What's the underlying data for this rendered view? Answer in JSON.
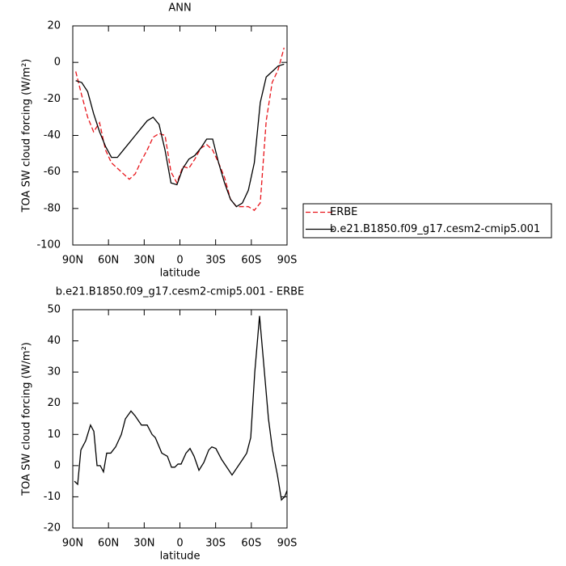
{
  "chart_data": [
    {
      "type": "line",
      "title": "ANN",
      "xlabel": "latitude",
      "ylabel": "TOA SW cloud forcing (W/m²)",
      "xlim": [
        90,
        -90
      ],
      "ylim": [
        -100,
        20
      ],
      "xticks": [
        {
          "value": 90,
          "label": "90N"
        },
        {
          "value": 60,
          "label": "60N"
        },
        {
          "value": 30,
          "label": "30N"
        },
        0,
        {
          "value": -30,
          "label": "30S"
        },
        {
          "value": -60,
          "label": "60S"
        },
        {
          "value": -90,
          "label": "90S"
        }
      ],
      "yticks": [
        -100,
        -80,
        -60,
        -40,
        -20,
        0,
        20
      ],
      "legend": "right",
      "x": [
        87.5,
        82.5,
        77.5,
        72.5,
        67.5,
        62.5,
        57.5,
        52.5,
        47.5,
        42.5,
        37.5,
        32.5,
        27.5,
        22.5,
        17.5,
        12.5,
        7.5,
        2.5,
        -2.5,
        -7.5,
        -12.5,
        -17.5,
        -22.5,
        -27.5,
        -32.5,
        -37.5,
        -42.5,
        -47.5,
        -52.5,
        -57.5,
        -62.5,
        -67.5,
        -72.5,
        -77.5,
        -82.5,
        -87.5
      ],
      "series": [
        {
          "name": "ERBE",
          "color": "#e8141a",
          "style": "dashed",
          "values": [
            -5,
            -18,
            -30,
            -38,
            -33,
            -48,
            -55,
            -58,
            -61,
            -64,
            -61,
            -54,
            -48,
            -41,
            -39,
            -40,
            -60,
            -66,
            -57,
            -58,
            -53,
            -47,
            -45,
            -48,
            -55,
            -63,
            -75,
            -79,
            -79,
            -79,
            -81,
            -77,
            -32,
            -11,
            -4,
            8
          ]
        },
        {
          "name": "b.e21.B1850.f09_g17.cesm2-cmip5.001",
          "color": "#000000",
          "style": "solid",
          "values": [
            -10,
            -11,
            -16,
            -28,
            -38,
            -46,
            -52,
            -52,
            -48,
            -44,
            -40,
            -36,
            -32,
            -30,
            -34,
            -48,
            -66,
            -67,
            -58,
            -53,
            -51,
            -47,
            -42,
            -42,
            -55,
            -66,
            -75,
            -79,
            -77,
            -70,
            -55,
            -22,
            -8,
            -5,
            -2,
            -1
          ]
        }
      ]
    },
    {
      "type": "line",
      "title": "b.e21.B1850.f09_g17.cesm2-cmip5.001 - ERBE",
      "xlabel": "latitude",
      "ylabel": "TOA SW cloud forcing (W/m²)",
      "xlim": [
        90,
        -90
      ],
      "ylim": [
        -20,
        50
      ],
      "xticks": [
        {
          "value": 90,
          "label": "90N"
        },
        {
          "value": 60,
          "label": "60N"
        },
        {
          "value": 30,
          "label": "30N"
        },
        0,
        {
          "value": -30,
          "label": "30S"
        },
        {
          "value": -60,
          "label": "60S"
        },
        {
          "value": -90,
          "label": "90S"
        }
      ],
      "yticks": [
        -20,
        -10,
        0,
        10,
        20,
        30,
        40,
        50
      ],
      "x": [
        88.6,
        85.9,
        83.2,
        79.1,
        75.1,
        72.3,
        69.6,
        66.9,
        64.2,
        61.5,
        58.1,
        54.0,
        49.2,
        45.8,
        41.1,
        37.7,
        32.3,
        27.5,
        23.4,
        20.7,
        15.2,
        10.5,
        7.1,
        4.3,
        1.6,
        -1.0,
        -5.1,
        -8.5,
        -11.9,
        -16.0,
        -20.1,
        -24.2,
        -26.8,
        -30.2,
        -35.0,
        -43.8,
        -52.7,
        -56.1,
        -59.5,
        -62.9,
        -66.9,
        -71.0,
        -74.4,
        -77.8,
        -81.9,
        -85.3,
        -88.0,
        -90.0
      ],
      "series": [
        {
          "name": null,
          "color": "#000000",
          "style": "solid",
          "values": [
            -5,
            -6,
            5,
            8,
            13,
            11,
            0,
            0,
            -2,
            4,
            4,
            6,
            10,
            15,
            17.5,
            16,
            13,
            13,
            10,
            9,
            4,
            3,
            -0.5,
            -0.5,
            0.5,
            0.5,
            4,
            5.5,
            3,
            -1.5,
            1,
            5,
            6,
            5.5,
            2,
            -3,
            2,
            4,
            9,
            30,
            48,
            30,
            15,
            5,
            -3,
            -11,
            -10,
            -8
          ]
        }
      ]
    }
  ]
}
